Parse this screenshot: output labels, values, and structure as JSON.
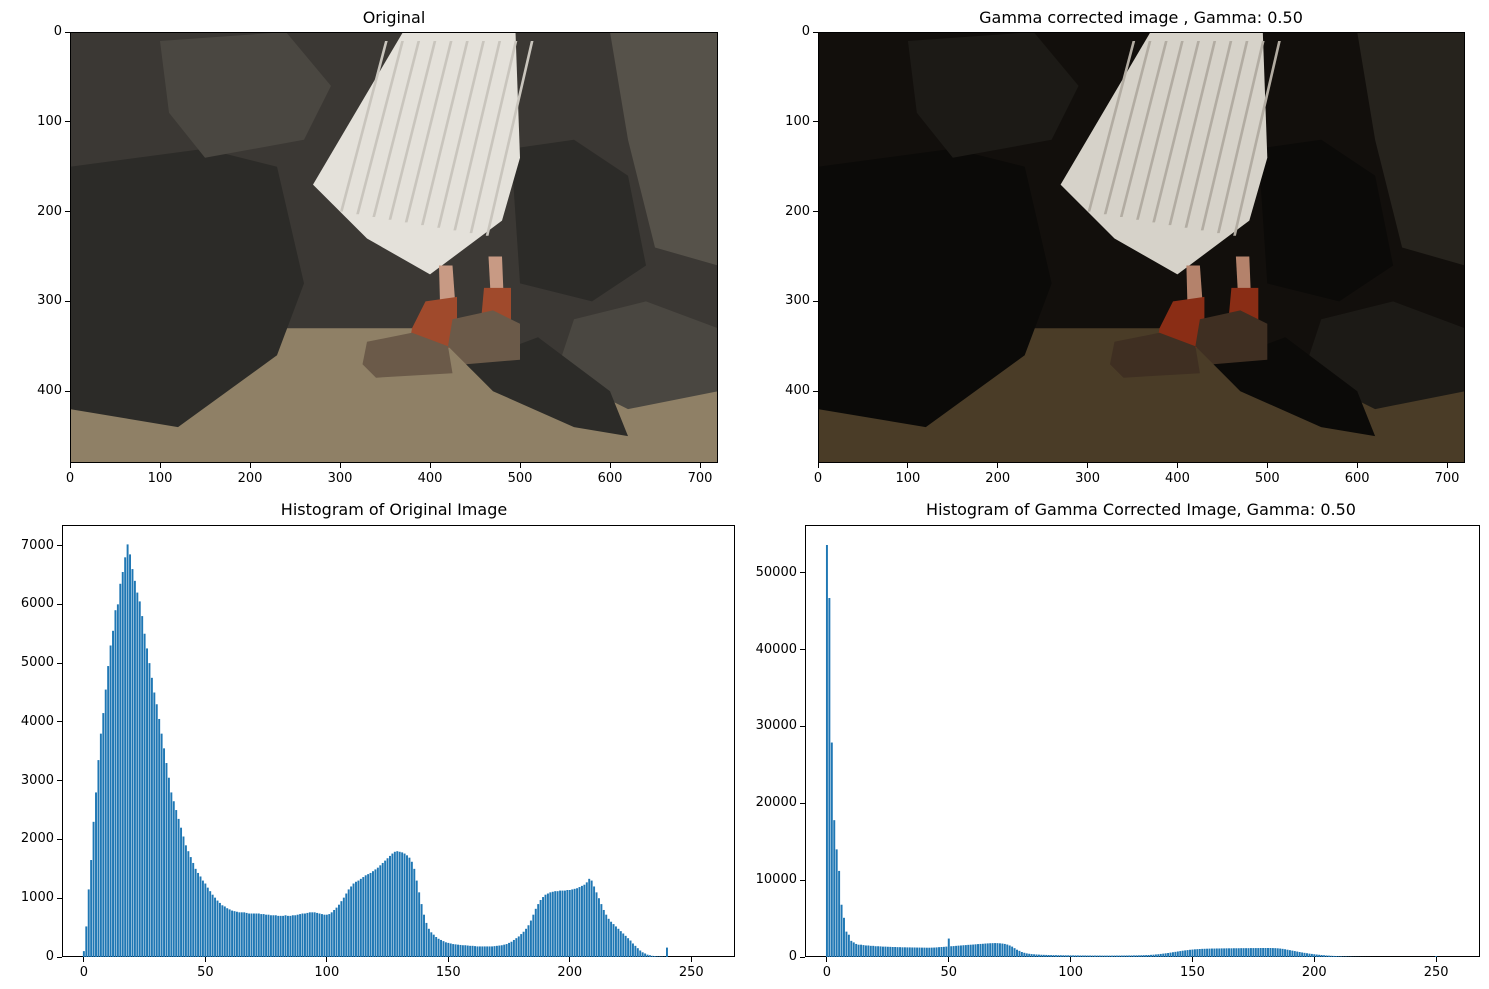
{
  "panels": {
    "original": {
      "title": "Original"
    },
    "gamma": {
      "title": "Gamma corrected image , Gamma: 0.50"
    },
    "hist_original": {
      "title": "Histogram of Original Image"
    },
    "hist_gamma": {
      "title": "Histogram of Gamma Corrected Image, Gamma: 0.50"
    }
  },
  "chart_data": [
    {
      "type": "image",
      "title": "Original",
      "xticks": [
        0,
        100,
        200,
        300,
        400,
        500,
        600,
        700
      ],
      "yticks": [
        0,
        100,
        200,
        300,
        400
      ],
      "xlim": [
        0,
        720
      ],
      "ylim": [
        480,
        0
      ],
      "gamma": 1.0
    },
    {
      "type": "image",
      "title": "Gamma corrected image , Gamma: 0.50",
      "xticks": [
        0,
        100,
        200,
        300,
        400,
        500,
        600,
        700
      ],
      "yticks": [
        0,
        100,
        200,
        300,
        400
      ],
      "xlim": [
        0,
        720
      ],
      "ylim": [
        480,
        0
      ],
      "gamma": 0.5
    },
    {
      "type": "bar",
      "title": "Histogram of Original Image",
      "color": "#1f77b4",
      "xlim": [
        -9,
        268
      ],
      "ylim": [
        0,
        7350
      ],
      "xticks": [
        0,
        50,
        100,
        150,
        200,
        250
      ],
      "yticks": [
        0,
        1000,
        2000,
        3000,
        4000,
        5000,
        6000,
        7000
      ],
      "x_start": 0,
      "values": [
        100,
        520,
        1150,
        1650,
        2300,
        2800,
        3350,
        3800,
        4150,
        4550,
        4950,
        5300,
        5550,
        5900,
        6000,
        6350,
        6550,
        6800,
        7020,
        6850,
        6600,
        6400,
        6200,
        6050,
        5800,
        5500,
        5250,
        5000,
        4750,
        4500,
        4300,
        4050,
        3800,
        3550,
        3300,
        3050,
        2800,
        2650,
        2500,
        2350,
        2200,
        2050,
        1900,
        1800,
        1700,
        1600,
        1500,
        1430,
        1370,
        1300,
        1250,
        1180,
        1120,
        1060,
        1010,
        960,
        920,
        880,
        860,
        830,
        810,
        790,
        780,
        770,
        760,
        760,
        760,
        750,
        740,
        740,
        740,
        740,
        740,
        730,
        730,
        720,
        720,
        710,
        710,
        710,
        700,
        700,
        700,
        710,
        700,
        700,
        710,
        710,
        720,
        730,
        740,
        740,
        750,
        760,
        760,
        760,
        750,
        740,
        730,
        720,
        720,
        730,
        760,
        800,
        840,
        890,
        950,
        1010,
        1080,
        1150,
        1200,
        1250,
        1280,
        1300,
        1330,
        1360,
        1390,
        1410,
        1430,
        1460,
        1490,
        1520,
        1560,
        1600,
        1640,
        1680,
        1720,
        1760,
        1790,
        1800,
        1790,
        1780,
        1760,
        1730,
        1690,
        1620,
        1500,
        1300,
        1100,
        900,
        720,
        580,
        480,
        420,
        380,
        340,
        310,
        290,
        270,
        250,
        240,
        230,
        220,
        215,
        210,
        205,
        200,
        200,
        195,
        190,
        190,
        185,
        180,
        180,
        180,
        180,
        180,
        180,
        180,
        185,
        190,
        195,
        200,
        210,
        220,
        240,
        260,
        290,
        320,
        350,
        390,
        430,
        480,
        540,
        620,
        720,
        820,
        900,
        970,
        1020,
        1060,
        1080,
        1100,
        1110,
        1120,
        1120,
        1130,
        1130,
        1130,
        1140,
        1140,
        1150,
        1160,
        1170,
        1190,
        1210,
        1230,
        1270,
        1330,
        1300,
        1200,
        1100,
        1000,
        900,
        800,
        720,
        650,
        600,
        560,
        520,
        480,
        440,
        400,
        360,
        320,
        280,
        230,
        190,
        150,
        110,
        80,
        60,
        40,
        30,
        20,
        15,
        10,
        10,
        8,
        6,
        160
      ]
    },
    {
      "type": "bar",
      "title": "Histogram of Gamma Corrected Image, Gamma: 0.50",
      "color": "#1f77b4",
      "xlim": [
        -9,
        268
      ],
      "ylim": [
        0,
        56200
      ],
      "xticks": [
        0,
        50,
        100,
        150,
        200,
        250
      ],
      "yticks": [
        0,
        10000,
        20000,
        30000,
        40000,
        50000
      ],
      "x_start": 0,
      "values": [
        53600,
        46700,
        27900,
        17800,
        14000,
        11200,
        6800,
        5100,
        3300,
        2900,
        2100,
        1900,
        1700,
        1600,
        1600,
        1550,
        1500,
        1500,
        1450,
        1450,
        1400,
        1400,
        1380,
        1350,
        1350,
        1330,
        1320,
        1300,
        1300,
        1280,
        1280,
        1260,
        1260,
        1250,
        1250,
        1240,
        1240,
        1230,
        1230,
        1220,
        1220,
        1210,
        1210,
        1220,
        1230,
        1250,
        1280,
        1300,
        1320,
        1350,
        2400,
        1400,
        1420,
        1450,
        1480,
        1500,
        1530,
        1550,
        1580,
        1600,
        1620,
        1650,
        1680,
        1700,
        1720,
        1750,
        1770,
        1790,
        1800,
        1810,
        1800,
        1780,
        1750,
        1700,
        1620,
        1500,
        1350,
        1150,
        950,
        800,
        650,
        550,
        470,
        420,
        380,
        350,
        330,
        310,
        290,
        280,
        270,
        260,
        250,
        245,
        240,
        235,
        230,
        225,
        220,
        220,
        215,
        210,
        210,
        205,
        200,
        200,
        200,
        195,
        195,
        190,
        190,
        190,
        190,
        185,
        185,
        185,
        185,
        185,
        190,
        190,
        190,
        195,
        195,
        200,
        200,
        205,
        210,
        215,
        220,
        230,
        240,
        250,
        260,
        280,
        300,
        330,
        360,
        400,
        440,
        480,
        520,
        570,
        620,
        670,
        720,
        770,
        820,
        860,
        900,
        940,
        970,
        1000,
        1020,
        1040,
        1060,
        1070,
        1080,
        1090,
        1100,
        1100,
        1110,
        1110,
        1120,
        1120,
        1130,
        1130,
        1130,
        1140,
        1140,
        1140,
        1150,
        1150,
        1150,
        1150,
        1160,
        1160,
        1160,
        1160,
        1170,
        1170,
        1170,
        1170,
        1170,
        1160,
        1150,
        1130,
        1100,
        1060,
        1010,
        950,
        890,
        830,
        770,
        710,
        650,
        590,
        540,
        490,
        440,
        400,
        360,
        320,
        290,
        260,
        230,
        200,
        180,
        160,
        140,
        120,
        100,
        85,
        70,
        60,
        50,
        40,
        30,
        25,
        20,
        15,
        12,
        10,
        8,
        6,
        5,
        4,
        3,
        3,
        2,
        2,
        2,
        2,
        1,
        1,
        1,
        1,
        1,
        1,
        1,
        1,
        1,
        1,
        1,
        1,
        1,
        1,
        1,
        1,
        1,
        1,
        120
      ]
    }
  ]
}
